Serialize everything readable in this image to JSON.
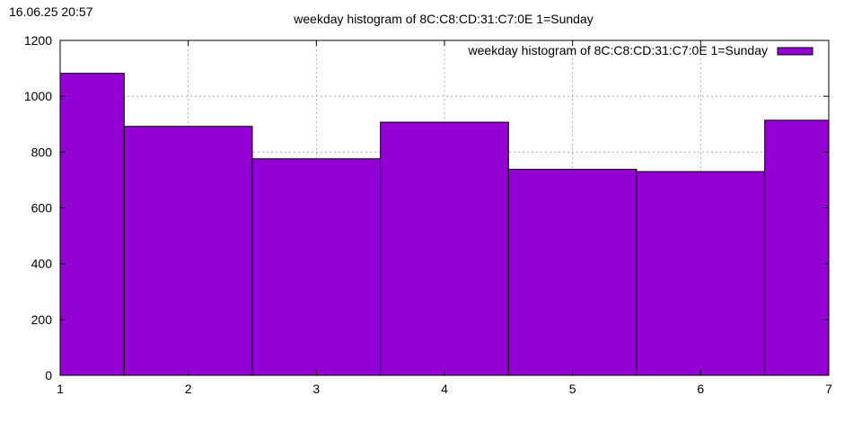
{
  "timestamp": "16.06.25 20:57",
  "chart_data": {
    "type": "bar",
    "title": "weekday histogram of 8C:C8:CD:31:C7:0E 1=Sunday",
    "xlabel": "",
    "ylabel": "",
    "xlim": [
      1,
      7
    ],
    "ylim": [
      0,
      1200
    ],
    "xticks": [
      "1",
      "2",
      "3",
      "4",
      "5",
      "6",
      "7"
    ],
    "yticks": [
      "0",
      "200",
      "400",
      "600",
      "800",
      "1000",
      "1200"
    ],
    "grid": true,
    "legend_position": "top-right",
    "series": [
      {
        "name": "weekday histogram of 8C:C8:CD:31:C7:0E 1=Sunday",
        "color": "#9400d3",
        "x": [
          1,
          2,
          3,
          4,
          5,
          6,
          7
        ],
        "values": [
          1082,
          892,
          776,
          907,
          738,
          730,
          914
        ]
      }
    ]
  }
}
